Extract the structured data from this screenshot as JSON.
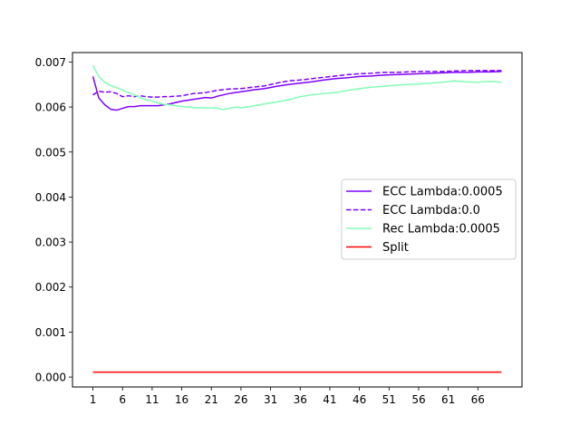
{
  "chart_data": {
    "type": "line",
    "x_start": 1,
    "x_end": 70,
    "xticks": [
      1,
      6,
      11,
      16,
      21,
      26,
      31,
      36,
      41,
      46,
      51,
      56,
      61,
      66
    ],
    "xlim": [
      -2.45,
      73.45
    ],
    "yticks": [
      0.0,
      0.001,
      0.002,
      0.003,
      0.004,
      0.005,
      0.006,
      0.007
    ],
    "ytick_labels": [
      "0.000",
      "0.001",
      "0.002",
      "0.003",
      "0.004",
      "0.005",
      "0.006",
      "0.007"
    ],
    "ylim": [
      -0.00022,
      0.00721
    ],
    "grid": false,
    "legend_position": "center-right",
    "series": [
      {
        "name": "ECC Lambda:0.0005",
        "color": "#7f00ff",
        "dash": "solid",
        "points": [
          [
            1,
            0.00668
          ],
          [
            2,
            0.0062
          ],
          [
            3,
            0.00605
          ],
          [
            4,
            0.00595
          ],
          [
            5,
            0.00593
          ],
          [
            6,
            0.00597
          ],
          [
            7,
            0.00601
          ],
          [
            8,
            0.00601
          ],
          [
            9,
            0.00603
          ],
          [
            10,
            0.00603
          ],
          [
            11,
            0.00603
          ],
          [
            12,
            0.00603
          ],
          [
            13,
            0.00605
          ],
          [
            14,
            0.00607
          ],
          [
            15,
            0.0061
          ],
          [
            16,
            0.00613
          ],
          [
            18,
            0.00617
          ],
          [
            20,
            0.00621
          ],
          [
            21,
            0.0062
          ],
          [
            22,
            0.00624
          ],
          [
            24,
            0.0063
          ],
          [
            26,
            0.00634
          ],
          [
            28,
            0.00638
          ],
          [
            30,
            0.00641
          ],
          [
            32,
            0.00646
          ],
          [
            34,
            0.0065
          ],
          [
            36,
            0.00653
          ],
          [
            38,
            0.00656
          ],
          [
            40,
            0.0066
          ],
          [
            42,
            0.00663
          ],
          [
            44,
            0.00665
          ],
          [
            46,
            0.00668
          ],
          [
            48,
            0.00669
          ],
          [
            50,
            0.00671
          ],
          [
            52,
            0.00672
          ],
          [
            54,
            0.00673
          ],
          [
            56,
            0.00674
          ],
          [
            58,
            0.00675
          ],
          [
            60,
            0.00676
          ],
          [
            62,
            0.00677
          ],
          [
            64,
            0.00677
          ],
          [
            66,
            0.00678
          ],
          [
            68,
            0.00678
          ],
          [
            70,
            0.00679
          ]
        ]
      },
      {
        "name": "ECC Lambda:0.0",
        "color": "#7f00ff",
        "dash": "dashed",
        "points": [
          [
            1,
            0.00627
          ],
          [
            2,
            0.00635
          ],
          [
            3,
            0.00633
          ],
          [
            4,
            0.00634
          ],
          [
            5,
            0.0063
          ],
          [
            6,
            0.00623
          ],
          [
            7,
            0.00625
          ],
          [
            8,
            0.00623
          ],
          [
            9,
            0.00625
          ],
          [
            10,
            0.00623
          ],
          [
            11,
            0.00622
          ],
          [
            12,
            0.00622
          ],
          [
            13,
            0.00623
          ],
          [
            14,
            0.00623
          ],
          [
            15,
            0.00624
          ],
          [
            16,
            0.00625
          ],
          [
            18,
            0.0063
          ],
          [
            20,
            0.00632
          ],
          [
            22,
            0.00637
          ],
          [
            24,
            0.0064
          ],
          [
            26,
            0.00641
          ],
          [
            28,
            0.00644
          ],
          [
            30,
            0.00647
          ],
          [
            32,
            0.00653
          ],
          [
            34,
            0.00658
          ],
          [
            36,
            0.0066
          ],
          [
            38,
            0.00663
          ],
          [
            40,
            0.00666
          ],
          [
            42,
            0.00669
          ],
          [
            44,
            0.00672
          ],
          [
            46,
            0.00674
          ],
          [
            48,
            0.00675
          ],
          [
            50,
            0.00677
          ],
          [
            52,
            0.00677
          ],
          [
            54,
            0.00678
          ],
          [
            56,
            0.00679
          ],
          [
            58,
            0.00679
          ],
          [
            60,
            0.00679
          ],
          [
            62,
            0.0068
          ],
          [
            64,
            0.00681
          ],
          [
            66,
            0.00681
          ],
          [
            68,
            0.00681
          ],
          [
            70,
            0.00681
          ]
        ]
      },
      {
        "name": "Rec Lambda:0.0005",
        "color": "#80ffb4",
        "dash": "solid",
        "points": [
          [
            1,
            0.00692
          ],
          [
            2,
            0.00668
          ],
          [
            3,
            0.00655
          ],
          [
            4,
            0.00648
          ],
          [
            5,
            0.00643
          ],
          [
            6,
            0.00638
          ],
          [
            7,
            0.00632
          ],
          [
            8,
            0.00627
          ],
          [
            9,
            0.00621
          ],
          [
            10,
            0.00616
          ],
          [
            11,
            0.00614
          ],
          [
            12,
            0.00609
          ],
          [
            13,
            0.00606
          ],
          [
            14,
            0.00605
          ],
          [
            15,
            0.00603
          ],
          [
            16,
            0.00601
          ],
          [
            18,
            0.00599
          ],
          [
            20,
            0.00598
          ],
          [
            22,
            0.00598
          ],
          [
            23,
            0.00594
          ],
          [
            24,
            0.00597
          ],
          [
            25,
            0.006
          ],
          [
            26,
            0.00598
          ],
          [
            27,
            0.006
          ],
          [
            28,
            0.00602
          ],
          [
            30,
            0.00607
          ],
          [
            32,
            0.00611
          ],
          [
            34,
            0.00616
          ],
          [
            36,
            0.00623
          ],
          [
            38,
            0.00627
          ],
          [
            40,
            0.0063
          ],
          [
            42,
            0.00632
          ],
          [
            44,
            0.00637
          ],
          [
            46,
            0.00641
          ],
          [
            48,
            0.00644
          ],
          [
            50,
            0.00646
          ],
          [
            52,
            0.00648
          ],
          [
            54,
            0.0065
          ],
          [
            56,
            0.00651
          ],
          [
            58,
            0.00653
          ],
          [
            60,
            0.00655
          ],
          [
            62,
            0.00658
          ],
          [
            64,
            0.00656
          ],
          [
            66,
            0.00655
          ],
          [
            68,
            0.00657
          ],
          [
            70,
            0.00655
          ]
        ]
      },
      {
        "name": "Split",
        "color": "#ff0000",
        "dash": "solid",
        "points": [
          [
            1,
            0.00011
          ],
          [
            70,
            0.00011
          ]
        ]
      }
    ]
  }
}
